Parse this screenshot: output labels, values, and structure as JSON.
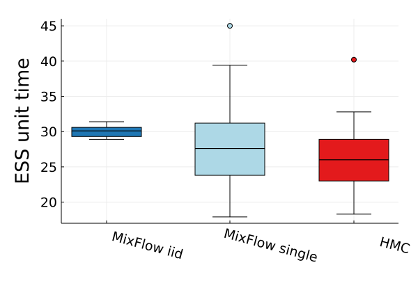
{
  "chart_data": {
    "type": "box",
    "title": "",
    "xlabel": "",
    "ylabel": "ESS unit time",
    "ylim": [
      17,
      46
    ],
    "yticks": [
      20,
      25,
      30,
      35,
      40,
      45
    ],
    "grid": true,
    "legend": "none",
    "categories": [
      "MixFlow iid",
      "MixFlow single",
      "HMC"
    ],
    "boxes": [
      {
        "category": "MixFlow iid",
        "color": "#1f77b4",
        "whisker_low": 28.9,
        "q1": 29.3,
        "median": 30.1,
        "q3": 30.6,
        "whisker_high": 31.4,
        "outliers": []
      },
      {
        "category": "MixFlow single",
        "color": "#add8e6",
        "whisker_low": 17.9,
        "q1": 23.8,
        "median": 27.6,
        "q3": 31.2,
        "whisker_high": 39.4,
        "outliers": [
          45.0
        ]
      },
      {
        "category": "HMC",
        "color": "#e31a1c",
        "whisker_low": 18.3,
        "q1": 23.0,
        "median": 26.0,
        "q3": 28.9,
        "whisker_high": 32.8,
        "outliers": [
          40.2
        ]
      }
    ]
  }
}
